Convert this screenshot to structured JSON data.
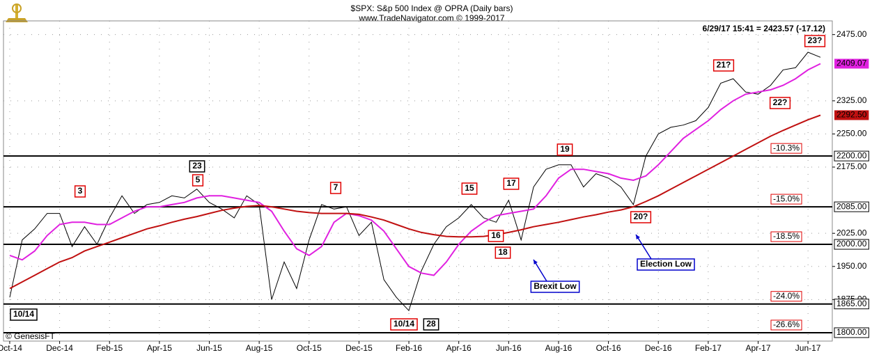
{
  "chart_data": {
    "type": "line",
    "title": "$SPX:  S&p 500 Index @ OPRA  (Daily bars)",
    "subtitle": "www.TradeNavigator.com © 1999-2017",
    "quote": "6/29/17 15:41 = 2423.57 (-17.12)",
    "copyright": "© GenesisFT",
    "categories": [
      "Oct-14",
      null,
      null,
      null,
      "Dec-14",
      null,
      null,
      null,
      "Feb-15",
      null,
      null,
      null,
      "Apr-15",
      null,
      null,
      null,
      "Jun-15",
      null,
      null,
      null,
      "Aug-15",
      null,
      null,
      null,
      "Oct-15",
      null,
      null,
      null,
      "Dec-15",
      null,
      null,
      null,
      "Feb-16",
      null,
      null,
      null,
      "Apr-16",
      null,
      null,
      null,
      "Jun-16",
      null,
      null,
      null,
      "Aug-16",
      null,
      null,
      null,
      "Oct-16",
      null,
      null,
      null,
      "Dec-16",
      null,
      null,
      null,
      "Feb-17",
      null,
      null,
      null,
      "Apr-17",
      null,
      null,
      null,
      "Jun-17",
      null
    ],
    "series": [
      {
        "color": "#000000",
        "values": [
          1880,
          2010,
          2035,
          2070,
          2070,
          1995,
          2040,
          2000,
          2060,
          2110,
          2070,
          2090,
          2095,
          2110,
          2105,
          2125,
          2095,
          2080,
          2060,
          2110,
          2090,
          1875,
          1960,
          1900,
          2010,
          2090,
          2080,
          2085,
          2020,
          2050,
          1920,
          1880,
          1850,
          1940,
          2000,
          2040,
          2060,
          2090,
          2060,
          2050,
          2100,
          2010,
          2130,
          2170,
          2180,
          2180,
          2130,
          2160,
          2150,
          2130,
          2090,
          2200,
          2250,
          2265,
          2270,
          2280,
          2310,
          2365,
          2375,
          2345,
          2340,
          2360,
          2395,
          2400,
          2435,
          2423.57
        ]
      },
      {
        "color": "#e020e0",
        "tag": "2409.07",
        "values": [
          1975,
          1965,
          1985,
          2020,
          2045,
          2050,
          2050,
          2045,
          2045,
          2060,
          2075,
          2085,
          2085,
          2090,
          2095,
          2105,
          2110,
          2110,
          2105,
          2100,
          2095,
          2075,
          2030,
          1990,
          1975,
          1995,
          2050,
          2070,
          2065,
          2055,
          2030,
          1990,
          1950,
          1935,
          1930,
          1960,
          2000,
          2030,
          2050,
          2065,
          2070,
          2075,
          2080,
          2110,
          2150,
          2170,
          2170,
          2165,
          2160,
          2150,
          2145,
          2155,
          2180,
          2210,
          2240,
          2260,
          2280,
          2305,
          2325,
          2340,
          2345,
          2350,
          2360,
          2375,
          2395,
          2409.07
        ]
      },
      {
        "color": "#c01010",
        "tag": "2292.50",
        "values": [
          1900,
          1915,
          1930,
          1945,
          1960,
          1970,
          1985,
          1995,
          2005,
          2015,
          2025,
          2035,
          2042,
          2050,
          2057,
          2063,
          2070,
          2077,
          2082,
          2086,
          2088,
          2085,
          2080,
          2075,
          2072,
          2070,
          2070,
          2070,
          2068,
          2062,
          2055,
          2045,
          2035,
          2027,
          2022,
          2018,
          2017,
          2017,
          2018,
          2022,
          2027,
          2033,
          2040,
          2045,
          2050,
          2056,
          2062,
          2067,
          2073,
          2078,
          2085,
          2097,
          2110,
          2125,
          2140,
          2155,
          2170,
          2185,
          2200,
          2215,
          2230,
          2245,
          2258,
          2270,
          2282,
          2292.5
        ]
      }
    ],
    "ylim": [
      1781,
      2506
    ],
    "yticks": [
      {
        "value": 2475,
        "label": "2475.00"
      },
      {
        "value": 2325,
        "label": "2325.00"
      },
      {
        "value": 2250,
        "label": "2250.00"
      },
      {
        "value": 2175,
        "label": "2175.00"
      },
      {
        "value": 2025,
        "label": "2025.00"
      },
      {
        "value": 1950,
        "label": "1950.00"
      },
      {
        "value": 1875,
        "label": "1875.00"
      }
    ],
    "grid": true,
    "levels": [
      {
        "value": 2200,
        "label": "2200.00",
        "change": "-10.3%"
      },
      {
        "value": 2085,
        "label": "2085.00",
        "change": "-15.0%"
      },
      {
        "value": 2000,
        "label": "2000.00",
        "change": "-18.5%"
      },
      {
        "value": 1865,
        "label": "1865.00",
        "change": "-24.0%"
      },
      {
        "value": 1800,
        "label": "1800.00",
        "change": "-26.6%"
      }
    ],
    "annotations": [
      {
        "text": "3",
        "color": "#e00000"
      },
      {
        "text": "5",
        "color": "#e00000"
      },
      {
        "text": "23",
        "color": "#000000"
      },
      {
        "text": "7",
        "color": "#e00000"
      },
      {
        "text": "15",
        "color": "#e00000"
      },
      {
        "text": "17",
        "color": "#e00000"
      },
      {
        "text": "19",
        "color": "#e00000"
      },
      {
        "text": "21?",
        "color": "#e00000"
      },
      {
        "text": "23?",
        "color": "#e00000"
      },
      {
        "text": "22?",
        "color": "#e00000"
      },
      {
        "text": "16",
        "color": "#e00000"
      },
      {
        "text": "18",
        "color": "#e00000"
      },
      {
        "text": "20?",
        "color": "#e00000"
      },
      {
        "text": "10/14",
        "color": "#e00000"
      },
      {
        "text": "28",
        "color": "#000000"
      },
      {
        "text": "10/14",
        "color": "#000000"
      },
      {
        "text": "Brexit Low",
        "color": "#0000cc"
      },
      {
        "text": "Election Low",
        "color": "#0000cc"
      }
    ]
  }
}
